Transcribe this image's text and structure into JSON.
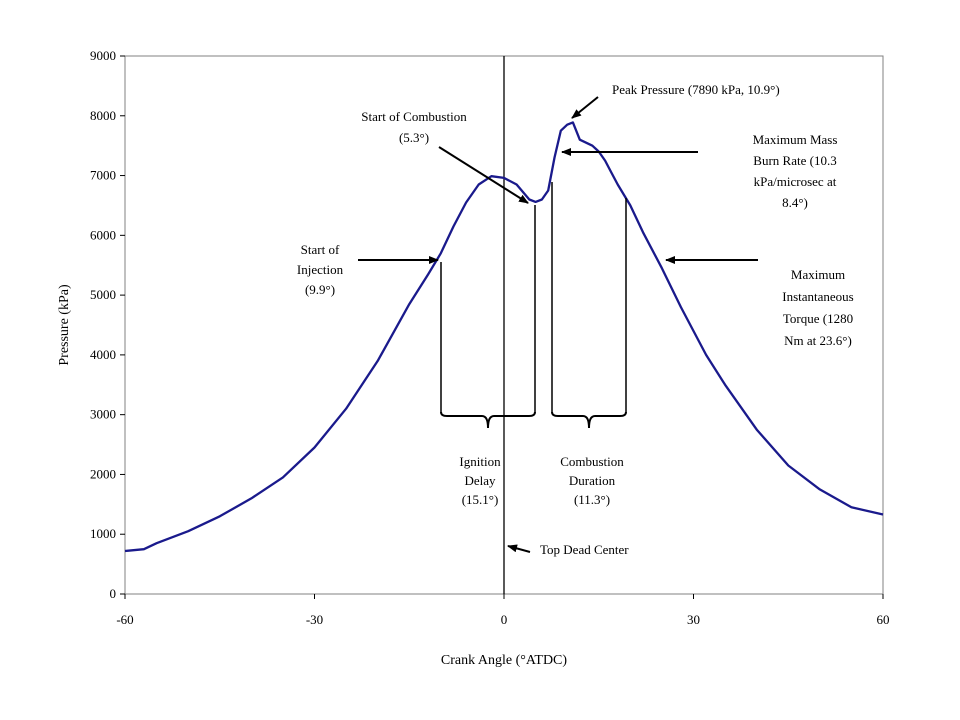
{
  "chart_data": {
    "type": "line",
    "title": "",
    "xlabel": "Crank Angle (°ATDC)",
    "ylabel": "Pressure (kPa)",
    "xlim": [
      -60,
      60
    ],
    "ylim": [
      0,
      9000
    ],
    "xticks": [
      -60,
      -30,
      0,
      30,
      60
    ],
    "yticks": [
      0,
      1000,
      2000,
      3000,
      4000,
      5000,
      6000,
      7000,
      8000,
      9000
    ],
    "grid": false,
    "legend": "none",
    "line_color": "#1a1a8c",
    "series": [
      {
        "x": [
          -60,
          -57,
          -55,
          -50,
          -45,
          -40,
          -35,
          -30,
          -25,
          -20,
          -15,
          -12,
          -10,
          -8,
          -6,
          -4,
          -2,
          0,
          2,
          4,
          5,
          6,
          7,
          8,
          9,
          10,
          10.9,
          12,
          13,
          14,
          15,
          16,
          17,
          18,
          20,
          22,
          25,
          28,
          30,
          32,
          35,
          40,
          45,
          50,
          55,
          60
        ],
        "y": [
          720,
          750,
          850,
          1050,
          1300,
          1600,
          1950,
          2450,
          3100,
          3900,
          4850,
          5350,
          5700,
          6150,
          6550,
          6850,
          6990,
          6960,
          6850,
          6600,
          6560,
          6600,
          6750,
          7300,
          7750,
          7850,
          7890,
          7600,
          7550,
          7500,
          7400,
          7250,
          7050,
          6850,
          6500,
          6050,
          5450,
          4800,
          4400,
          4000,
          3500,
          2750,
          2150,
          1750,
          1450,
          1330
        ]
      }
    ],
    "annotations": [
      {
        "id": "start_injection",
        "lines": [
          "Start of",
          "Injection",
          "(9.9°)"
        ]
      },
      {
        "id": "start_combustion",
        "lines": [
          "Start of Combustion",
          "(5.3°)"
        ]
      },
      {
        "id": "peak_pressure",
        "lines": [
          "Peak Pressure  (7890 kPa, 10.9°)"
        ]
      },
      {
        "id": "max_mass_burn",
        "lines": [
          "Maximum Mass",
          "Burn Rate (10.3",
          "kPa/microsec at",
          "8.4°)"
        ]
      },
      {
        "id": "max_torque",
        "lines": [
          "Maximum",
          "Instantaneous",
          "Torque (1280",
          "Nm at 23.6°)"
        ]
      },
      {
        "id": "ignition_delay",
        "lines": [
          "Ignition",
          "Delay",
          "(15.1°)"
        ]
      },
      {
        "id": "combustion_duration",
        "lines": [
          "Combustion",
          "Duration",
          "(11.3°)"
        ]
      },
      {
        "id": "tdc",
        "lines": [
          "Top Dead Center"
        ]
      }
    ]
  }
}
